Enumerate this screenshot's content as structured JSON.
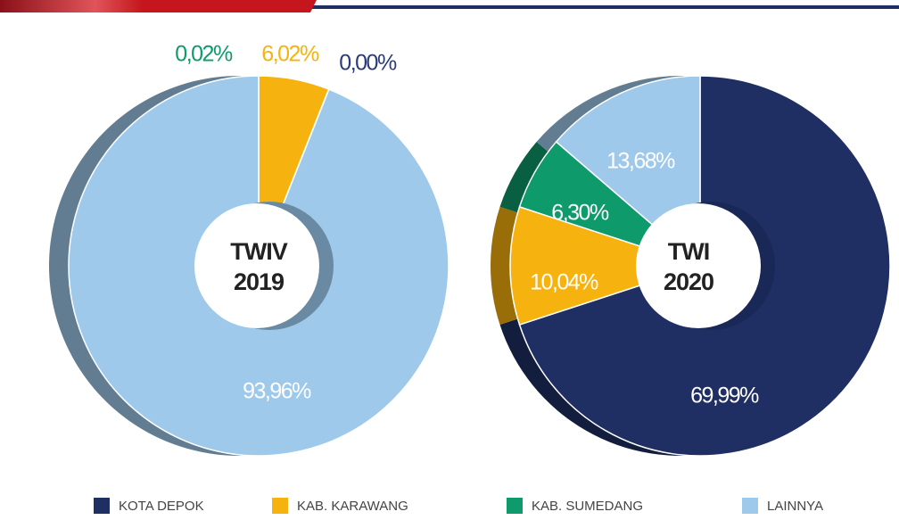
{
  "legend": {
    "categories": [
      "KOTA DEPOK",
      "KAB. KARAWANG",
      "KAB. SUMEDANG",
      "LAINNYA"
    ],
    "colors": [
      "#1f2f63",
      "#f6b20f",
      "#0e9a6a",
      "#9ec9ea"
    ]
  },
  "chart_data": [
    {
      "type": "donut",
      "title": "TWIV 2019",
      "values": [
        0.0,
        6.02,
        0.02,
        93.96
      ],
      "value_labels": [
        "0,00%",
        "6,02%",
        "0,02%",
        "93,96%"
      ]
    },
    {
      "type": "donut",
      "title": "TWI 2020",
      "values": [
        69.99,
        10.04,
        6.3,
        13.68
      ],
      "value_labels": [
        "69,99%",
        "10,04%",
        "6,30%",
        "13,68%"
      ]
    }
  ]
}
